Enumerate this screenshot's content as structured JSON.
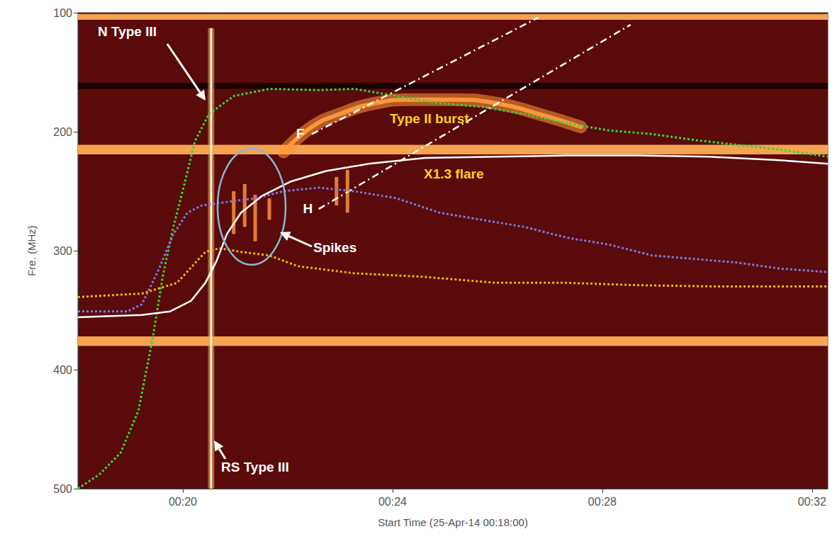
{
  "chart_data": {
    "type": "line",
    "x_label": "Start Time (25-Apr-14 00:18:00)",
    "y_label": "Fre. (MHz)",
    "xlim": [
      0,
      14.3
    ],
    "xticks": [
      {
        "value": 2,
        "label": "00:20"
      },
      {
        "value": 6,
        "label": "00:24"
      },
      {
        "value": 10,
        "label": "00:28"
      },
      {
        "value": 14,
        "label": "00:32"
      }
    ],
    "ylim": [
      500,
      100
    ],
    "yticks": [
      100,
      200,
      300,
      400,
      500
    ],
    "grid": false,
    "series": [
      {
        "color": "#33d633",
        "line_style": "dotted",
        "x": [
          0,
          0.41,
          0.81,
          1.15,
          1.42,
          1.62,
          1.82,
          2.03,
          2.23,
          2.5,
          2.97,
          3.65,
          4.59,
          5.27,
          6.08,
          6.89,
          7.7,
          8.51,
          9.32,
          10.14,
          10.95,
          11.76,
          12.57,
          13.38,
          14.3
        ],
        "values": [
          500,
          488,
          470,
          435,
          375,
          321,
          280,
          244,
          208,
          185,
          170,
          164,
          165,
          164,
          170,
          176,
          179,
          185,
          193,
          199,
          202,
          207,
          211,
          215,
          221
        ]
      },
      {
        "color": "#7a78e8",
        "line_style": "dotted",
        "x": [
          0,
          0.95,
          1.22,
          1.55,
          1.82,
          2.09,
          2.36,
          2.84,
          3.38,
          3.92,
          4.59,
          5.27,
          6.08,
          6.89,
          7.7,
          8.51,
          9.32,
          10.14,
          10.95,
          11.76,
          12.57,
          13.38,
          14.3
        ],
        "values": [
          351,
          351,
          345,
          315,
          286,
          268,
          262,
          259,
          256,
          250,
          247,
          250,
          256,
          268,
          274,
          280,
          289,
          295,
          304,
          307,
          310,
          315,
          318
        ]
      },
      {
        "color": "#f0b400",
        "line_style": "dotted",
        "x": [
          0,
          1.22,
          1.89,
          2.43,
          2.7,
          3.11,
          3.65,
          4.19,
          5.27,
          6.62,
          7.97,
          9.32,
          10.68,
          12.03,
          13.38,
          14.3
        ],
        "values": [
          339,
          336,
          327,
          301,
          298,
          301,
          304,
          313,
          319,
          322,
          327,
          327,
          329,
          330,
          330,
          330
        ]
      },
      {
        "color": "#ffffff",
        "line_style": "solid",
        "x": [
          0,
          1.22,
          1.76,
          2.16,
          2.43,
          2.64,
          2.84,
          3.11,
          3.51,
          4.05,
          4.73,
          5.54,
          6.62,
          7.97,
          9.32,
          10.68,
          12.03,
          13.38,
          14.3
        ],
        "values": [
          356,
          354,
          351,
          342,
          327,
          309,
          286,
          268,
          254,
          242,
          233,
          227,
          222,
          221,
          220,
          220,
          221,
          224,
          227
        ]
      }
    ],
    "fits": [
      {
        "label": "F",
        "color": "#ffffff",
        "line_style": "dashdot",
        "x": [
          4.46,
          8.78
        ],
        "values": [
          202,
          104
        ]
      },
      {
        "label": "H",
        "color": "#ffffff",
        "line_style": "dashdot",
        "x": [
          4.59,
          10.54
        ],
        "values": [
          265,
          110
        ]
      }
    ],
    "spectrogram": {
      "background": "#5a0a0a",
      "bright_bands": [
        [
          101,
          106
        ],
        [
          211,
          219
        ],
        [
          372,
          380
        ]
      ],
      "bright_band_color": "#f4a350",
      "dark_bands": [
        [
          159,
          164
        ]
      ],
      "dark_band_color": "#1a0000",
      "type_iii": {
        "time": 2.54,
        "freq": [
          113,
          500
        ],
        "color": "#fff3d6"
      },
      "type_ii_lane": {
        "color": "#ff9b3d",
        "x": [
          3.92,
          4.46,
          5.0,
          5.68,
          6.35,
          7.16,
          7.97,
          8.78,
          9.59
        ],
        "values": [
          217,
          196,
          185,
          176,
          173,
          173,
          176,
          185,
          196
        ]
      },
      "spikes": {
        "color": "#ff9b3d",
        "segments": [
          [
            2.97,
            250,
            286
          ],
          [
            3.18,
            244,
            280
          ],
          [
            3.38,
            253,
            292
          ],
          [
            3.65,
            256,
            274
          ],
          [
            4.93,
            238,
            262
          ],
          [
            5.14,
            232,
            268
          ]
        ]
      }
    },
    "annotations": [
      "N Type III",
      "RS Type III",
      "Type II burst",
      "X1.3 flare",
      "Spikes"
    ]
  }
}
